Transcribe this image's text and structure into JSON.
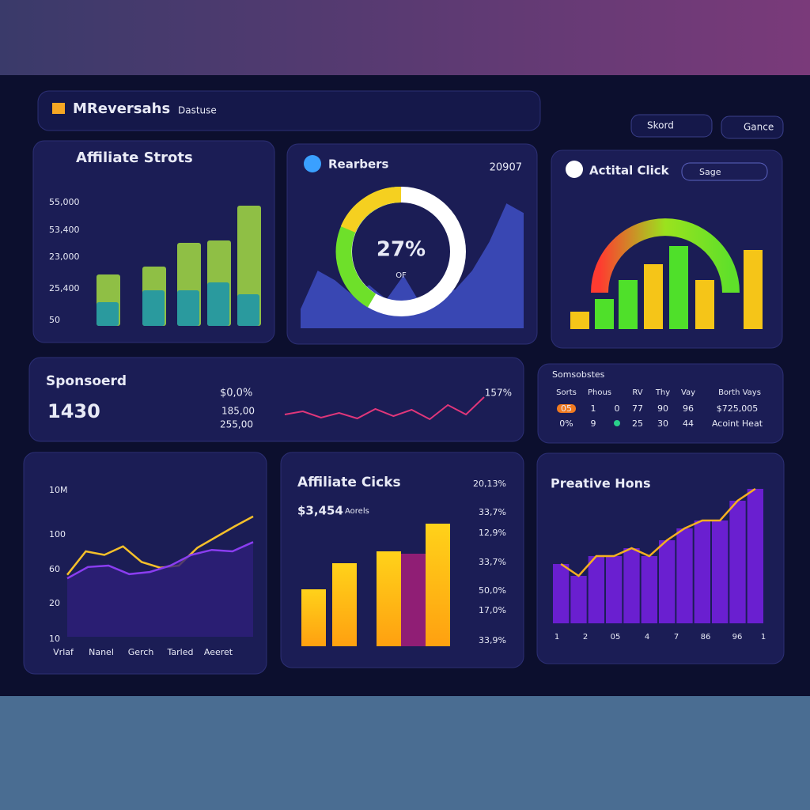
{
  "header": {
    "brand": "MReversahs",
    "search": "Dastuse",
    "select": "Skord",
    "button": "Gance"
  },
  "affiliate_stats": {
    "title": "Affiliate Strots",
    "y_labels": [
      "55,000",
      "53,400",
      "23,000",
      "25,400",
      "50"
    ],
    "chart_data": {
      "type": "bar",
      "ylim": [
        0,
        160
      ],
      "series": [
        {
          "color": "#8fbf45",
          "values": [
            65,
            75,
            105,
            108,
            152
          ]
        },
        {
          "color": "#2a9a9e",
          "values": [
            30,
            45,
            45,
            55,
            40
          ]
        }
      ]
    }
  },
  "reachers": {
    "title": "Rearbers",
    "value": "20907",
    "donut_label": "27%",
    "donut_sub": "OF",
    "chart_data": {
      "type": "area",
      "color": "#3e4fc4",
      "ylim": [
        0,
        140
      ],
      "values": [
        20,
        60,
        50,
        35,
        45,
        30,
        55,
        25,
        45,
        40,
        60,
        90,
        130,
        120
      ]
    }
  },
  "actital_click": {
    "title": "Actital Click",
    "dropdown": "Sage",
    "chart_data": {
      "type": "bar",
      "ylim": [
        0,
        110
      ],
      "values": [
        22,
        38,
        62,
        82,
        105,
        62,
        100
      ],
      "colors": [
        "#f5c518",
        "#4fe02a",
        "#4fe02a",
        "#f5c518",
        "#4fe02a",
        "#f5c518",
        "#f5c518"
      ]
    }
  },
  "sponsored": {
    "title": "Sponsoerd",
    "value": "1430",
    "change": "$0,0%",
    "stat1": "185,00",
    "stat2": "255,00",
    "peak": "157%",
    "chart_data": {
      "type": "line",
      "color": "#e0367a",
      "ylim": [
        0,
        40
      ],
      "values": [
        8,
        12,
        4,
        10,
        3,
        15,
        6,
        14,
        2,
        20,
        8,
        30
      ]
    }
  },
  "table": {
    "title": "Somsobstes",
    "columns": [
      "Sorts",
      "Phous",
      "RV",
      "Thy",
      "Vay",
      "Borth Vays"
    ],
    "rows": [
      [
        "05",
        "1",
        "0",
        "77",
        "90",
        "96",
        "$725,005"
      ],
      [
        "0%",
        "9",
        "25",
        "30",
        "44",
        "Acoint Heat"
      ]
    ]
  },
  "trend": {
    "y_labels": [
      "10M",
      "100",
      "60",
      "20",
      "10"
    ],
    "x_labels": [
      "Vrlaf",
      "Nanel",
      "Gerch",
      "Tarled",
      "Aeeret"
    ],
    "chart_data": {
      "type": "line",
      "ylim": [
        0,
        200
      ],
      "series": [
        {
          "color": "#f5c02a",
          "values": [
            87,
            120,
            115,
            127,
            105,
            97,
            100,
            125,
            140,
            155,
            169
          ]
        },
        {
          "color": "#8a3df0",
          "values": [
            82,
            98,
            100,
            88,
            91,
            100,
            115,
            122,
            120,
            133
          ]
        }
      ]
    }
  },
  "affiliate_clicks": {
    "title": "Affiliate Cicks",
    "value": "$3,454",
    "value_note": "Aorels",
    "right_labels": [
      "20,13%",
      "33,7%",
      "12,9%",
      "33,7%",
      "50,0%",
      "17,0%",
      "33,9%"
    ],
    "chart_data": {
      "type": "bar",
      "ylim": [
        0,
        160
      ],
      "values": [
        72,
        105,
        120,
        155
      ]
    }
  },
  "preative": {
    "title": "Preative Hons",
    "x_labels": [
      "1",
      "2",
      "05",
      "4",
      "7",
      "86",
      "96",
      "1"
    ],
    "chart_data": {
      "type": "bar_line",
      "ylim": [
        0,
        180
      ],
      "bar_color": "#6a1fd0",
      "line_color": "#f5b020",
      "values": [
        75,
        60,
        85,
        85,
        95,
        85,
        105,
        120,
        130,
        130,
        155,
        170
      ]
    }
  }
}
